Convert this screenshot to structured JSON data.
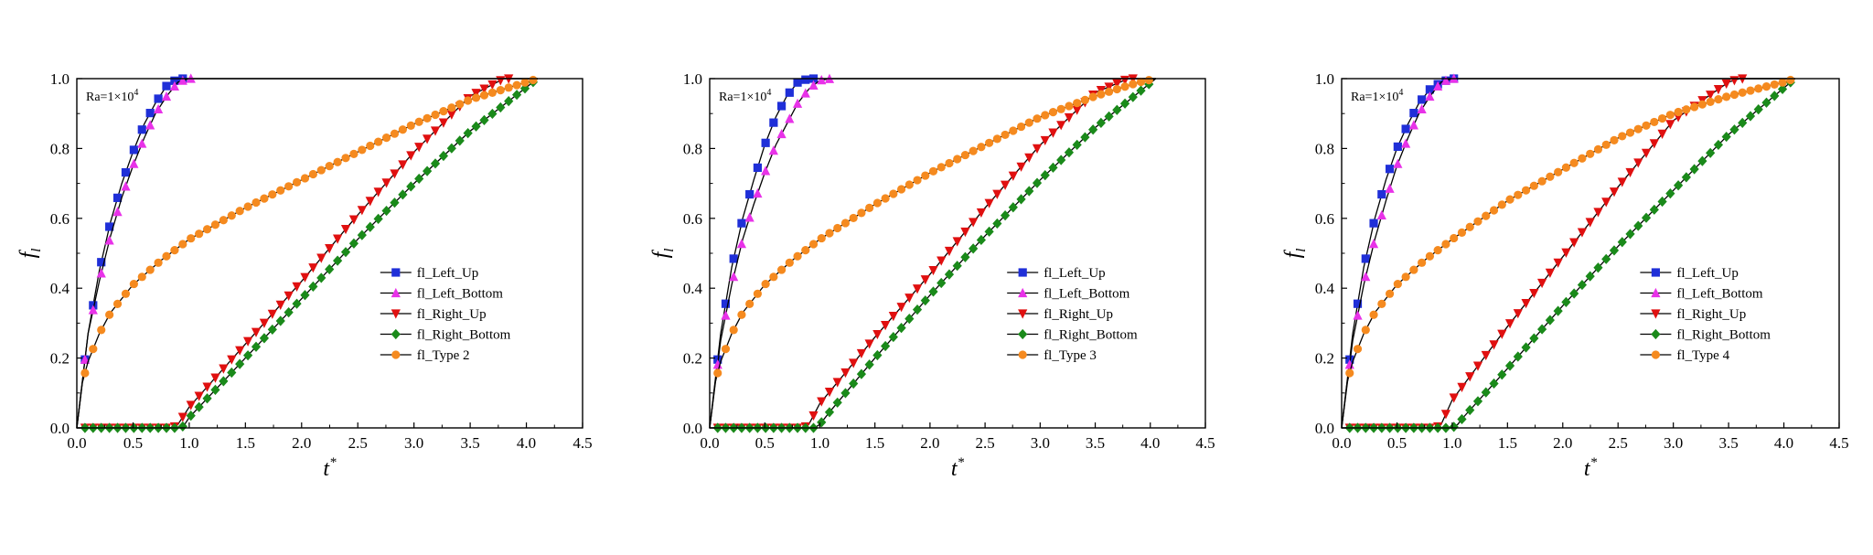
{
  "chart_data": [
    {
      "type": "line",
      "annotation": "Ra=1×10",
      "annotation_exp": "4",
      "xlabel": "t",
      "xlabel_sup": "*",
      "ylabel": "f",
      "ylabel_sub": "l",
      "xlim": [
        0,
        4.5
      ],
      "ylim": [
        0,
        1.0
      ],
      "x_ticks": [
        "0.0",
        "0.5",
        "1.0",
        "1.5",
        "2.0",
        "2.5",
        "3.0",
        "3.5",
        "4.0",
        "4.5"
      ],
      "y_ticks": [
        "0.0",
        "0.2",
        "0.4",
        "0.6",
        "0.8",
        "1.0"
      ],
      "legend_position": "right-center",
      "series": [
        {
          "name": "fl_Left_Up",
          "color": "#1f2fd8",
          "marker": "square",
          "x": [
            0,
            0.1,
            0.2,
            0.3,
            0.4,
            0.5,
            0.6,
            0.7,
            0.8,
            0.9,
            1.0,
            1.5,
            2.0,
            2.5,
            3.0,
            3.5,
            4.1
          ],
          "y": [
            0,
            0.27,
            0.45,
            0.59,
            0.7,
            0.79,
            0.87,
            0.93,
            0.98,
            1.0,
            1.0,
            1.0,
            1.0,
            1.0,
            1.0,
            1.0,
            1.0
          ]
        },
        {
          "name": "fl_Left_Bottom",
          "color": "#e832e8",
          "marker": "triangle-up",
          "x": [
            0,
            0.1,
            0.2,
            0.3,
            0.4,
            0.5,
            0.6,
            0.7,
            0.8,
            0.9,
            1.0,
            1.5,
            2.0,
            2.5,
            3.0,
            3.5,
            4.1
          ],
          "y": [
            0,
            0.27,
            0.42,
            0.55,
            0.66,
            0.75,
            0.83,
            0.9,
            0.95,
            0.99,
            1.0,
            1.0,
            1.0,
            1.0,
            1.0,
            1.0,
            1.0
          ]
        },
        {
          "name": "fl_Right_Up",
          "color": "#e01010",
          "marker": "triangle-down",
          "x": [
            0,
            0.5,
            0.85,
            0.9,
            1.0,
            1.5,
            2.0,
            2.5,
            3.0,
            3.5,
            3.8,
            4.1
          ],
          "y": [
            0,
            0,
            0,
            0.01,
            0.06,
            0.24,
            0.42,
            0.61,
            0.79,
            0.95,
            1.0,
            1.0
          ]
        },
        {
          "name": "fl_Right_Bottom",
          "color": "#1a8a1a",
          "marker": "diamond",
          "x": [
            0,
            0.5,
            0.9,
            0.95,
            1.0,
            1.5,
            2.0,
            2.5,
            3.0,
            3.5,
            4.1
          ],
          "y": [
            0,
            0,
            0,
            0.005,
            0.03,
            0.2,
            0.37,
            0.54,
            0.7,
            0.85,
            1.0
          ]
        },
        {
          "name": "fl_Type 2",
          "color": "#f58a1f",
          "marker": "circle",
          "x": [
            0,
            0.05,
            0.1,
            0.2,
            0.3,
            0.5,
            0.75,
            1.0,
            1.5,
            2.0,
            2.5,
            3.0,
            3.5,
            4.0,
            4.1
          ],
          "y": [
            0,
            0.13,
            0.19,
            0.27,
            0.33,
            0.41,
            0.48,
            0.54,
            0.63,
            0.71,
            0.79,
            0.87,
            0.94,
            0.99,
            1.0
          ]
        }
      ]
    },
    {
      "type": "line",
      "annotation": "Ra=1×10",
      "annotation_exp": "4",
      "xlabel": "t",
      "xlabel_sup": "*",
      "ylabel": "f",
      "ylabel_sub": "l",
      "xlim": [
        0,
        4.5
      ],
      "ylim": [
        0,
        1.0
      ],
      "x_ticks": [
        "0.0",
        "0.5",
        "1.0",
        "1.5",
        "2.0",
        "2.5",
        "3.0",
        "3.5",
        "4.0",
        "4.5"
      ],
      "y_ticks": [
        "0.0",
        "0.2",
        "0.4",
        "0.6",
        "0.8",
        "1.0"
      ],
      "legend_position": "right-center",
      "series": [
        {
          "name": "fl_Left_Up",
          "color": "#1f2fd8",
          "marker": "square",
          "x": [
            0,
            0.1,
            0.2,
            0.3,
            0.4,
            0.5,
            0.6,
            0.7,
            0.8,
            0.9,
            1.0,
            1.5,
            2.0,
            2.5,
            3.0,
            3.5,
            4.05
          ],
          "y": [
            0,
            0.27,
            0.46,
            0.6,
            0.71,
            0.81,
            0.89,
            0.95,
            0.99,
            1.0,
            1.0,
            1.0,
            1.0,
            1.0,
            1.0,
            1.0,
            1.0
          ]
        },
        {
          "name": "fl_Left_Bottom",
          "color": "#e832e8",
          "marker": "triangle-up",
          "x": [
            0,
            0.1,
            0.2,
            0.3,
            0.4,
            0.5,
            0.6,
            0.7,
            0.8,
            0.9,
            1.0,
            1.1,
            1.5,
            2.0,
            2.5,
            3.0,
            3.5,
            4.05
          ],
          "y": [
            0,
            0.25,
            0.41,
            0.54,
            0.64,
            0.73,
            0.81,
            0.87,
            0.93,
            0.97,
            0.995,
            1.0,
            1.0,
            1.0,
            1.0,
            1.0,
            1.0,
            1.0
          ]
        },
        {
          "name": "fl_Right_Up",
          "color": "#e01010",
          "marker": "triangle-down",
          "x": [
            0,
            0.5,
            0.85,
            0.9,
            1.0,
            1.5,
            2.0,
            2.5,
            3.0,
            3.5,
            3.8,
            4.05
          ],
          "y": [
            0,
            0,
            0,
            0.01,
            0.07,
            0.26,
            0.44,
            0.63,
            0.81,
            0.96,
            1.0,
            1.0
          ]
        },
        {
          "name": "fl_Right_Bottom",
          "color": "#1a8a1a",
          "marker": "diamond",
          "x": [
            0,
            0.5,
            0.95,
            1.0,
            1.1,
            1.5,
            2.0,
            2.5,
            3.0,
            3.5,
            4.05
          ],
          "y": [
            0,
            0,
            0,
            0.01,
            0.05,
            0.2,
            0.38,
            0.55,
            0.71,
            0.86,
            1.0
          ]
        },
        {
          "name": "fl_Type 3",
          "color": "#f58a1f",
          "marker": "circle",
          "x": [
            0,
            0.05,
            0.1,
            0.2,
            0.3,
            0.5,
            0.75,
            1.0,
            1.5,
            2.0,
            2.5,
            3.0,
            3.5,
            3.9,
            4.05
          ],
          "y": [
            0,
            0.13,
            0.19,
            0.27,
            0.33,
            0.41,
            0.48,
            0.54,
            0.64,
            0.73,
            0.81,
            0.89,
            0.95,
            0.99,
            1.0
          ]
        }
      ]
    },
    {
      "type": "line",
      "annotation": "Ra=1×10",
      "annotation_exp": "4",
      "xlabel": "t",
      "xlabel_sup": "*",
      "ylabel": "f",
      "ylabel_sub": "l",
      "xlim": [
        0,
        4.5
      ],
      "ylim": [
        0,
        1.0
      ],
      "x_ticks": [
        "0.0",
        "0.5",
        "1.0",
        "1.5",
        "2.0",
        "2.5",
        "3.0",
        "3.5",
        "4.0",
        "4.5"
      ],
      "y_ticks": [
        "0.0",
        "0.2",
        "0.4",
        "0.6",
        "0.8",
        "1.0"
      ],
      "legend_position": "right-center",
      "series": [
        {
          "name": "fl_Left_Up",
          "color": "#1f2fd8",
          "marker": "square",
          "x": [
            0,
            0.1,
            0.2,
            0.3,
            0.4,
            0.5,
            0.6,
            0.7,
            0.8,
            0.9,
            1.0,
            1.1,
            1.5,
            2.0,
            2.5,
            3.0,
            3.5,
            4.1
          ],
          "y": [
            0,
            0.27,
            0.46,
            0.6,
            0.71,
            0.8,
            0.87,
            0.93,
            0.97,
            0.99,
            1.0,
            1.0,
            1.0,
            1.0,
            1.0,
            1.0,
            1.0,
            1.0
          ]
        },
        {
          "name": "fl_Left_Bottom",
          "color": "#e832e8",
          "marker": "triangle-up",
          "x": [
            0,
            0.1,
            0.2,
            0.3,
            0.4,
            0.5,
            0.6,
            0.7,
            0.8,
            0.9,
            1.0,
            1.5,
            2.0,
            2.5,
            3.0,
            3.5,
            4.1
          ],
          "y": [
            0,
            0.25,
            0.41,
            0.54,
            0.65,
            0.75,
            0.83,
            0.9,
            0.95,
            0.99,
            1.0,
            1.0,
            1.0,
            1.0,
            1.0,
            1.0,
            1.0
          ]
        },
        {
          "name": "fl_Right_Up",
          "color": "#e01010",
          "marker": "triangle-down",
          "x": [
            0,
            0.5,
            0.85,
            0.9,
            1.0,
            1.5,
            2.0,
            2.5,
            3.0,
            3.5,
            3.6,
            4.1
          ],
          "y": [
            0,
            0,
            0,
            0.01,
            0.08,
            0.29,
            0.49,
            0.69,
            0.88,
            0.99,
            1.0,
            1.0
          ]
        },
        {
          "name": "fl_Right_Bottom",
          "color": "#1a8a1a",
          "marker": "diamond",
          "x": [
            0,
            0.5,
            1.0,
            1.05,
            1.1,
            1.5,
            2.0,
            2.5,
            3.0,
            3.5,
            4.1
          ],
          "y": [
            0,
            0,
            0,
            0.01,
            0.03,
            0.17,
            0.35,
            0.52,
            0.68,
            0.84,
            1.0
          ]
        },
        {
          "name": "fl_Type 4",
          "color": "#f58a1f",
          "marker": "circle",
          "x": [
            0,
            0.05,
            0.1,
            0.2,
            0.3,
            0.5,
            0.75,
            1.0,
            1.5,
            2.0,
            2.5,
            3.0,
            3.5,
            4.0,
            4.1
          ],
          "y": [
            0,
            0.13,
            0.19,
            0.27,
            0.33,
            0.41,
            0.48,
            0.54,
            0.65,
            0.74,
            0.83,
            0.9,
            0.95,
            0.99,
            1.0
          ]
        }
      ]
    }
  ]
}
